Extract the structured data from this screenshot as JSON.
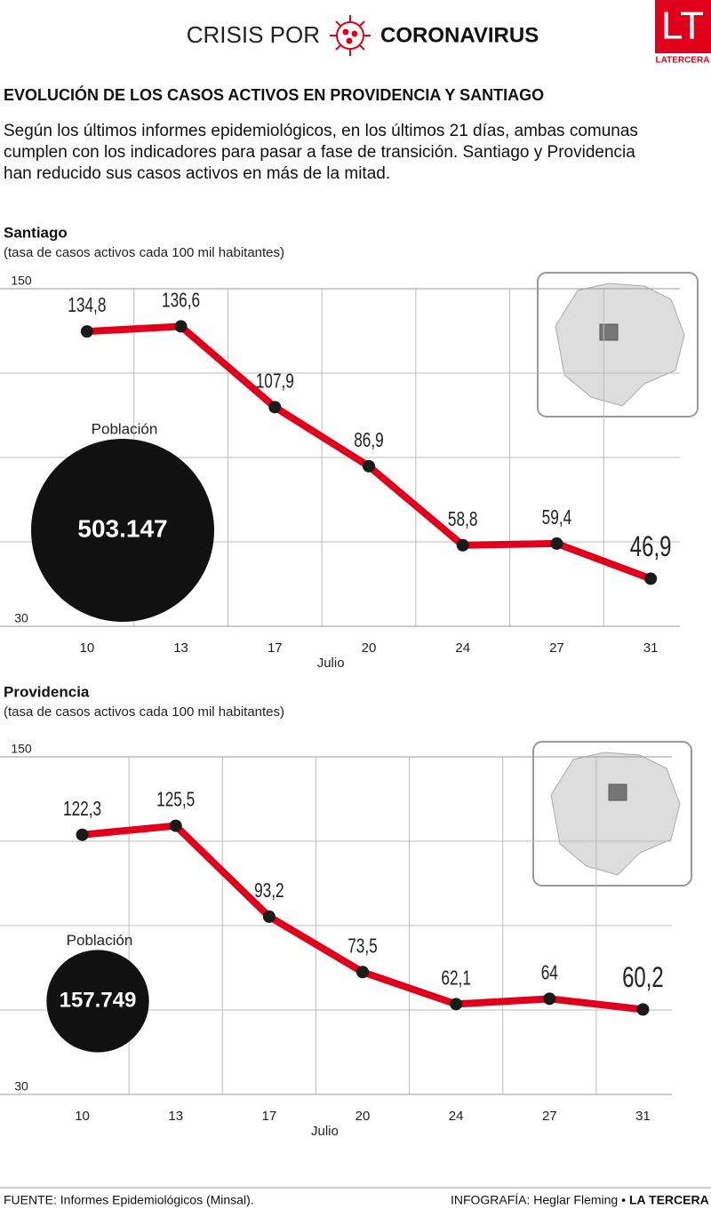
{
  "header": {
    "kicker": "CRISIS POR",
    "kicker_bold": "CORONAVIRUS",
    "logo": "LT",
    "logo_name": "LATERCERA",
    "title": "EVOLUCIÓN DE LOS CASOS ACTIVOS EN PROVIDENCIA Y SANTIAGO",
    "description": "Según los últimos informes epidemiológicos, en los últimos 21 días, ambas comunas cumplen con los indicadores para pasar a fase de transición. Santiago y Providencia han reducido sus casos activos en más de la mitad."
  },
  "chart_data": [
    {
      "type": "line",
      "title": "Santiago",
      "subtitle": "(tasa de casos activos cada 100 mil habitantes)",
      "categories": [
        "10",
        "13",
        "17",
        "20",
        "24",
        "27",
        "31"
      ],
      "x_label": "Julio",
      "values": [
        134.8,
        136.6,
        107.9,
        86.9,
        58.8,
        59.4,
        46.9
      ],
      "value_labels": [
        "134,8",
        "136,6",
        "107,9",
        "86,9",
        "58,8",
        "59,4",
        "46,9"
      ],
      "color": "#e0001b",
      "marker_color": "#1a1a1a",
      "ylim": [
        30,
        150
      ],
      "yticks": [
        30,
        150
      ],
      "grid": true,
      "bubble": {
        "label": "Población",
        "value": 503147,
        "value_label": "503.147"
      }
    },
    {
      "type": "line",
      "title": "Providencia",
      "subtitle": "(tasa de casos activos cada 100 mil habitantes)",
      "categories": [
        "10",
        "13",
        "17",
        "20",
        "24",
        "27",
        "31"
      ],
      "x_label": "Julio",
      "values": [
        122.3,
        125.5,
        93.2,
        73.5,
        62.1,
        64,
        60.2
      ],
      "value_labels": [
        "122,3",
        "125,5",
        "93,2",
        "73,5",
        "62,1",
        "64",
        "60,2"
      ],
      "color": "#e0001b",
      "marker_color": "#1a1a1a",
      "ylim": [
        30,
        150
      ],
      "yticks": [
        30,
        150
      ],
      "grid": true,
      "bubble": {
        "label": "Población",
        "value": 157749,
        "value_label": "157.749"
      }
    }
  ],
  "footer": {
    "source": "FUENTE: Informes Epidemiológicos (Minsal).",
    "credit": "INFOGRAFÍA: Heglar Fleming •",
    "brand": "LA TERCERA"
  }
}
